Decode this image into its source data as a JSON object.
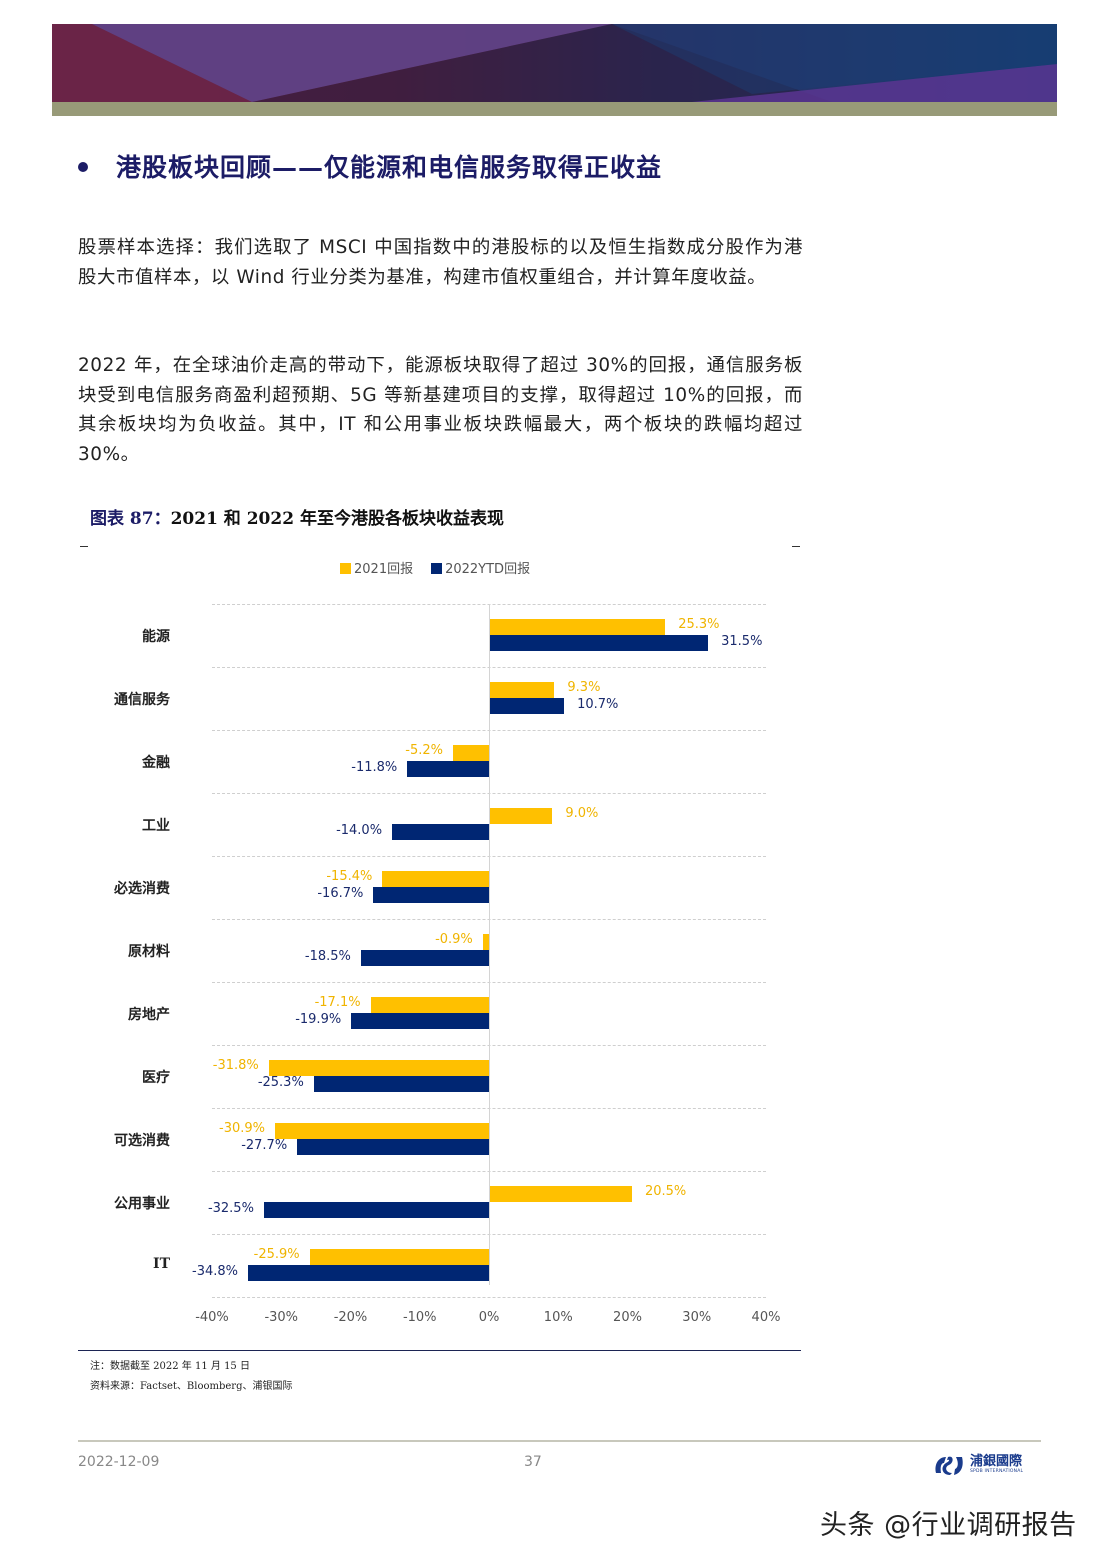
{
  "header": {
    "section_title": "港股板块回顾——仅能源和电信服务取得正收益"
  },
  "body": {
    "paragraph1": "股票样本选择：我们选取了 MSCI 中国指数中的港股标的以及恒生指数成分股作为港股大市值样本，以 Wind 行业分类为基准，构建市值权重组合，并计算年度收益。",
    "paragraph2": "2022 年，在全球油价走高的带动下，能源板块取得了超过 30%的回报，通信服务板块受到电信服务商盈利超预期、5G 等新基建项目的支撑，取得超过 10%的回报，而其余板块均为负收益。其中，IT 和公用事业板块跌幅最大，两个板块的跌幅均超过 30%。"
  },
  "figure": {
    "number_label": "图表 87：",
    "title": "2021 和 2022 年至今港股各板块收益表现",
    "note": "注：数据截至 2022 年 11 月 15 日",
    "source": "资料来源：Factset、Bloomberg、浦银国际"
  },
  "chart_data": {
    "type": "bar",
    "orientation": "horizontal",
    "title": "2021 和 2022 年至今港股各板块收益表现",
    "xlabel": "",
    "ylabel": "",
    "xlim": [
      -40,
      40
    ],
    "x_ticks": [
      "-40%",
      "-30%",
      "-20%",
      "-10%",
      "0%",
      "10%",
      "20%",
      "30%",
      "40%"
    ],
    "grid": true,
    "legend_position": "top",
    "categories": [
      "能源",
      "通信服务",
      "金融",
      "工业",
      "必选消费",
      "原材料",
      "房地产",
      "医疗",
      "可选消费",
      "公用事业",
      "IT"
    ],
    "series": [
      {
        "name": "2021回报",
        "color": "#ffc000",
        "values": [
          25.3,
          9.3,
          -5.2,
          9.0,
          -15.4,
          -0.9,
          -17.1,
          -31.8,
          -30.9,
          20.5,
          -25.9
        ],
        "labels": [
          "25.3%",
          "9.3%",
          "-5.2%",
          "9.0%",
          "-15.4%",
          "-0.9%",
          "-17.1%",
          "-31.8%",
          "-30.9%",
          "20.5%",
          "-25.9%"
        ]
      },
      {
        "name": "2022YTD回报",
        "color": "#002673",
        "values": [
          31.5,
          10.7,
          -11.8,
          -14.0,
          -16.7,
          -18.5,
          -19.9,
          -25.3,
          -27.7,
          -32.5,
          -34.8
        ],
        "labels": [
          "31.5%",
          "10.7%",
          "-11.8%",
          "-14.0%",
          "-16.7%",
          "-18.5%",
          "-19.9%",
          "-25.3%",
          "-27.7%",
          "-32.5%",
          "-34.8%"
        ]
      }
    ]
  },
  "footer": {
    "date": "2022-12-09",
    "page": "37",
    "logo_cn": "浦銀國際",
    "logo_en": "SPDB INTERNATIONAL"
  },
  "watermark": "头条 @行业调研报告"
}
